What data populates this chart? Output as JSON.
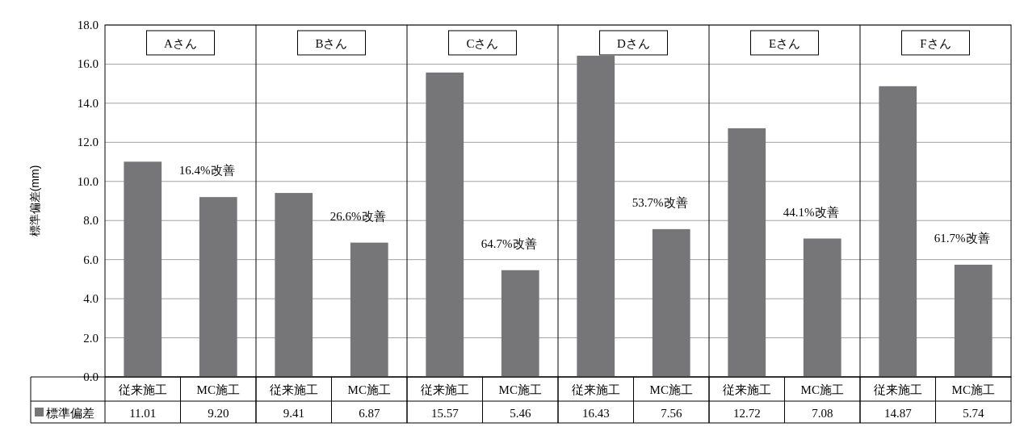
{
  "chart_data": {
    "type": "bar",
    "ylabel": "標準偏差(mm)",
    "categories": [
      "従来施工",
      "MC施工",
      "従来施工",
      "MC施工",
      "従来施工",
      "MC施工",
      "従来施工",
      "MC施工",
      "従来施工",
      "MC施工",
      "従来施工",
      "MC施工"
    ],
    "series": [
      {
        "name": "標準偏差",
        "color": "#767679",
        "values": [
          11.01,
          9.2,
          9.41,
          6.87,
          15.57,
          5.46,
          16.43,
          7.56,
          12.72,
          7.08,
          14.87,
          5.74
        ],
        "value_labels": [
          "11.01",
          "9.20",
          "9.41",
          "6.87",
          "15.57",
          "5.46",
          "16.43",
          "7.56",
          "12.72",
          "7.08",
          "14.87",
          "5.74"
        ]
      }
    ],
    "ylim": [
      0,
      18
    ],
    "yticks": [
      {
        "value": 0,
        "label": "0.0"
      },
      {
        "value": 2,
        "label": "2.0"
      },
      {
        "value": 4,
        "label": "4.0"
      },
      {
        "value": 6,
        "label": "6.0"
      },
      {
        "value": 8,
        "label": "8.0"
      },
      {
        "value": 10,
        "label": "10.0"
      },
      {
        "value": 12,
        "label": "12.0"
      },
      {
        "value": 14,
        "label": "14.0"
      },
      {
        "value": 16,
        "label": "16.0"
      },
      {
        "value": 18,
        "label": "18.0"
      }
    ],
    "grid": "y",
    "legend": "bottom",
    "annotations": [
      "Aさん",
      "Bさん",
      "Cさん",
      "Dさん",
      "Eさん",
      "Fさん",
      "16.4%改善",
      "26.6%改善",
      "64.7%改善",
      "53.7%改善",
      "44.1%改善",
      "61.7%改善"
    ]
  }
}
